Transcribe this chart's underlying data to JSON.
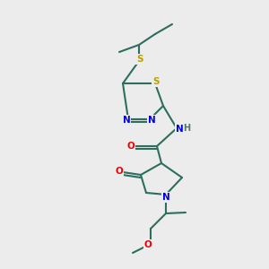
{
  "bg_color": "#ececec",
  "atom_colors": {
    "C": "#2d6e5e",
    "N": "#0000ee",
    "O": "#ee0000",
    "S": "#b8a000",
    "H": "#4a7a6a"
  },
  "bond_color": "#2d6e5e",
  "fig_size": [
    3.0,
    3.0
  ],
  "dpi": 100
}
